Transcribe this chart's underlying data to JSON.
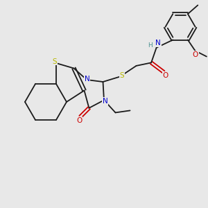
{
  "bg_color": "#e8e8e8",
  "bond_color": "#1a1a1a",
  "S_color": "#b8b800",
  "N_color": "#0000cc",
  "O_color": "#cc0000",
  "H_color": "#4a9090",
  "lw": 1.3,
  "fig_w": 3.0,
  "fig_h": 3.0,
  "dpi": 100,
  "xlim": [
    0,
    10
  ],
  "ylim": [
    0,
    10
  ]
}
